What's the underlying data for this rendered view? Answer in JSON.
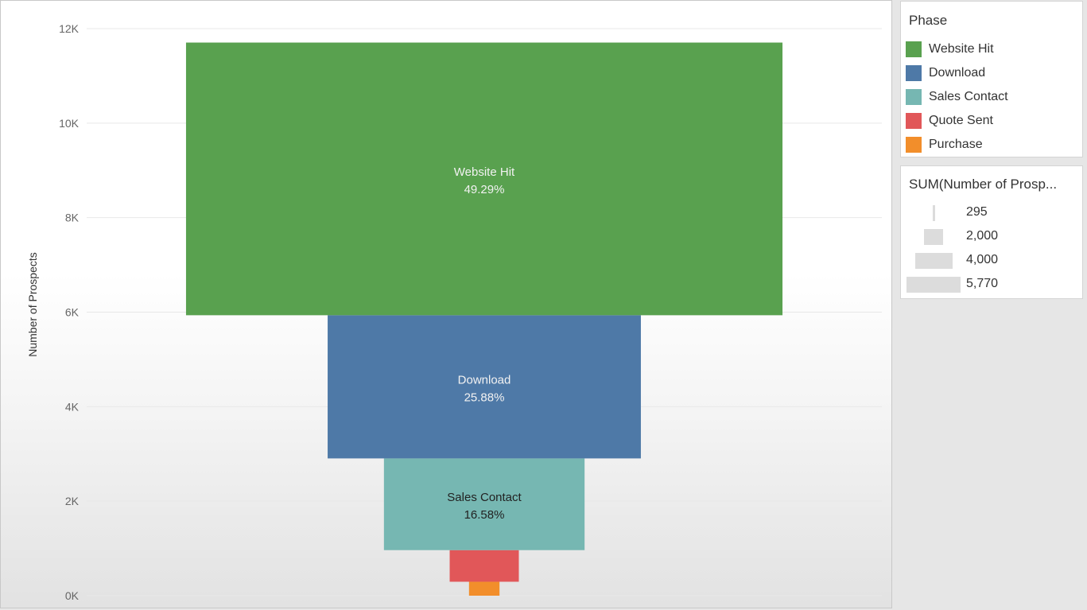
{
  "chart_data": {
    "type": "bar",
    "subtype": "funnel",
    "ylabel": "Number of Prospects",
    "ylim": [
      0,
      12000
    ],
    "yticks": [
      "0K",
      "2K",
      "4K",
      "6K",
      "8K",
      "10K",
      "12K"
    ],
    "categories": [
      "Website Hit",
      "Download",
      "Sales Contact",
      "Quote Sent",
      "Purchase"
    ],
    "values": [
      5770,
      3030,
      1941,
      669,
      295
    ],
    "percent_labels": [
      "49.29%",
      "25.88%",
      "16.58%",
      "",
      ""
    ],
    "colors": [
      "#59a14f",
      "#4e79a7",
      "#76b7b2",
      "#e15759",
      "#f28e2b"
    ],
    "grid": true,
    "legend_position": "right"
  },
  "legend": {
    "title": "Phase",
    "items": [
      {
        "label": "Website Hit",
        "color": "#59a14f"
      },
      {
        "label": "Download",
        "color": "#4e79a7"
      },
      {
        "label": "Sales Contact",
        "color": "#76b7b2"
      },
      {
        "label": "Quote Sent",
        "color": "#e15759"
      },
      {
        "label": "Purchase",
        "color": "#f28e2b"
      }
    ]
  },
  "size_legend": {
    "title": "SUM(Number of Prosp...",
    "items": [
      {
        "label": "295",
        "value": 295
      },
      {
        "label": "2,000",
        "value": 2000
      },
      {
        "label": "4,000",
        "value": 4000
      },
      {
        "label": "5,770",
        "value": 5770
      }
    ]
  }
}
